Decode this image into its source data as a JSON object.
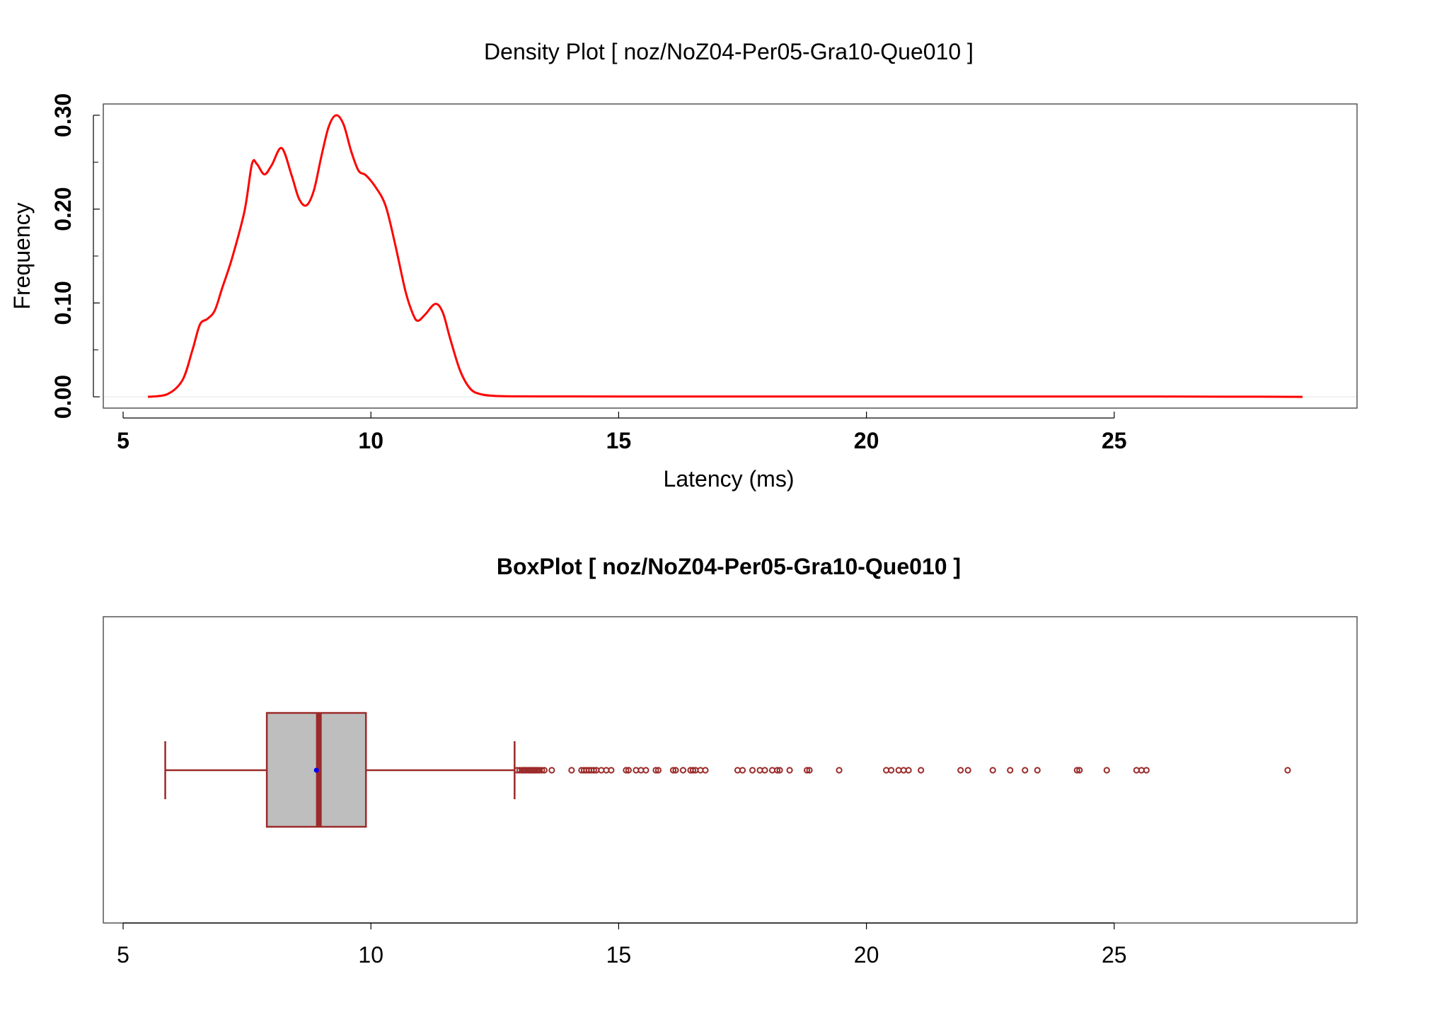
{
  "chart_data": [
    {
      "type": "line",
      "title": "Density Plot [ noz/NoZ04-Per05-Gra10-Que010 ]",
      "xlabel": "Latency (ms)",
      "ylabel": "Frequency",
      "xlim": [
        4.6,
        29.9
      ],
      "ylim": [
        -0.012,
        0.312
      ],
      "x_ticks": [
        5,
        10,
        15,
        20,
        25
      ],
      "x_tick_labels": [
        "5",
        "10",
        "15",
        "20",
        "25"
      ],
      "y_ticks": [
        0.0,
        0.1,
        0.2,
        0.3
      ],
      "y_tick_labels": [
        "0.00",
        "0.10",
        "0.20",
        "0.30"
      ],
      "y_minor_ticks": [
        0.05,
        0.15,
        0.25
      ],
      "grid": false,
      "series": [
        {
          "color": "#ff0000",
          "x": [
            5.5,
            5.9,
            6.2,
            6.4,
            6.55,
            6.7,
            6.85,
            7.0,
            7.2,
            7.45,
            7.6,
            7.7,
            7.85,
            8.0,
            8.2,
            8.4,
            8.55,
            8.7,
            8.85,
            9.0,
            9.15,
            9.3,
            9.45,
            9.6,
            9.75,
            9.9,
            10.1,
            10.3,
            10.5,
            10.7,
            10.85,
            10.95,
            11.1,
            11.3,
            11.45,
            11.6,
            11.8,
            12.0,
            12.2,
            12.5,
            13.0,
            14.0,
            16.0,
            18.0,
            20.0,
            22.0,
            24.0,
            26.0,
            28.8
          ],
          "y": [
            0.0,
            0.003,
            0.018,
            0.05,
            0.077,
            0.083,
            0.092,
            0.116,
            0.148,
            0.198,
            0.248,
            0.248,
            0.237,
            0.247,
            0.265,
            0.236,
            0.211,
            0.204,
            0.22,
            0.256,
            0.288,
            0.3,
            0.29,
            0.262,
            0.241,
            0.236,
            0.223,
            0.203,
            0.16,
            0.112,
            0.088,
            0.081,
            0.088,
            0.099,
            0.09,
            0.062,
            0.028,
            0.009,
            0.003,
            0.001,
            0.0005,
            0.0004,
            0.0003,
            0.0003,
            0.0003,
            0.0003,
            0.0003,
            0.0003,
            0.0
          ]
        }
      ]
    },
    {
      "type": "box",
      "title": "BoxPlot [ noz/NoZ04-Per05-Gra10-Que010 ]",
      "xlim": [
        4.6,
        29.9
      ],
      "x_ticks": [
        5,
        10,
        15,
        20,
        25
      ],
      "x_tick_labels": [
        "5",
        "10",
        "15",
        "20",
        "25"
      ],
      "box_color": "#9b2a2a",
      "fill_color": "#bebebe",
      "mean_color": "#0000ff",
      "box": {
        "whisker_low": 5.85,
        "q1": 7.9,
        "median": 8.95,
        "q3": 9.9,
        "whisker_high": 12.9,
        "mean": 8.9
      },
      "outliers": [
        12.95,
        13.0,
        13.05,
        13.08,
        13.1,
        13.12,
        13.15,
        13.18,
        13.2,
        13.22,
        13.25,
        13.28,
        13.3,
        13.32,
        13.35,
        13.38,
        13.4,
        13.45,
        13.5,
        13.65,
        14.05,
        14.25,
        14.3,
        14.35,
        14.4,
        14.45,
        14.5,
        14.55,
        14.65,
        14.75,
        14.85,
        15.15,
        15.2,
        15.35,
        15.45,
        15.55,
        15.75,
        15.8,
        16.1,
        16.15,
        16.3,
        16.45,
        16.5,
        16.55,
        16.65,
        16.75,
        17.4,
        17.5,
        17.7,
        17.85,
        17.95,
        18.1,
        18.2,
        18.25,
        18.45,
        18.8,
        18.85,
        19.45,
        20.4,
        20.5,
        20.65,
        20.75,
        20.85,
        21.1,
        21.9,
        22.05,
        22.55,
        22.9,
        23.2,
        23.45,
        24.25,
        24.3,
        24.85,
        25.45,
        25.55,
        25.65,
        28.5
      ]
    }
  ]
}
